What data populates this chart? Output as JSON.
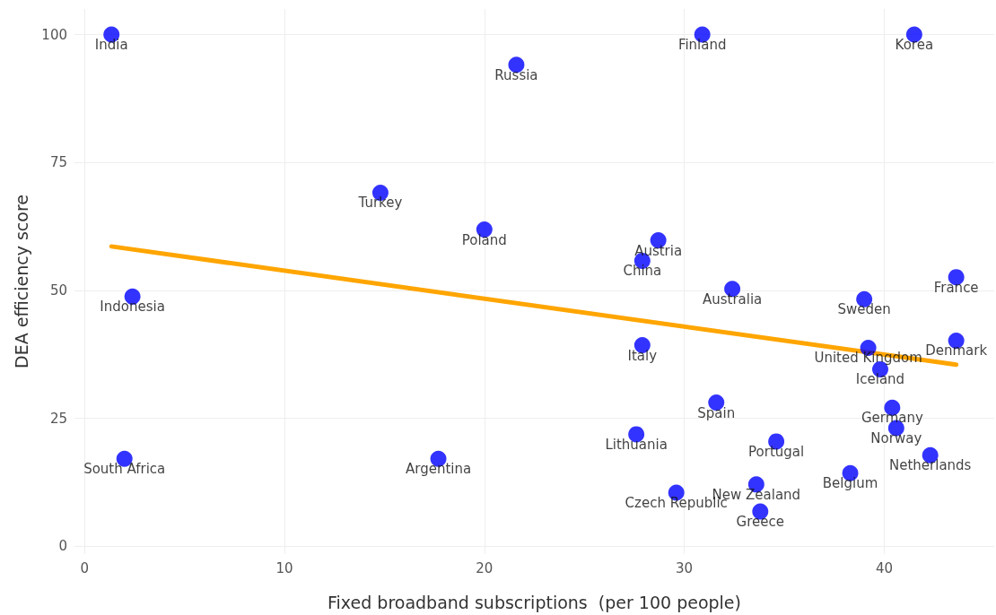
{
  "chart_data": {
    "type": "scatter",
    "xlabel": "Fixed broadband subscriptions  (per 100 people)",
    "ylabel": "DEA efficiency score",
    "xlim": [
      -0.5,
      45.5
    ],
    "xticks": [
      0,
      10,
      20,
      30,
      40
    ],
    "ylim": [
      -1.5,
      105
    ],
    "yticks": [
      0,
      25,
      50,
      75,
      100
    ],
    "grid": true,
    "series": [
      {
        "marker": "circle",
        "color": "#0000ff",
        "x": [
          1.35,
          30.9,
          41.5,
          21.6,
          14.8,
          20.0,
          28.7,
          27.9,
          43.6,
          32.4,
          2.4,
          39.0,
          43.6,
          27.9,
          39.2,
          39.8,
          31.6,
          40.4,
          40.6,
          27.6,
          34.6,
          42.3,
          2.0,
          17.7,
          38.3,
          33.6,
          29.6,
          33.8
        ],
        "values": [
          100,
          100,
          100,
          94.1,
          69.1,
          61.9,
          59.8,
          55.8,
          52.6,
          50.3,
          48.8,
          48.3,
          40.2,
          39.3,
          38.8,
          34.6,
          28.1,
          27.1,
          23.1,
          21.9,
          20.5,
          17.8,
          17.1,
          17.1,
          14.3,
          12.1,
          10.5,
          6.8
        ]
      },
      {
        "type": "line",
        "marker": "none",
        "color": "#ffa500",
        "x": [
          1.35,
          43.6
        ],
        "values": [
          58.6,
          35.5
        ]
      }
    ],
    "annotations": [
      {
        "text": "India",
        "x": 1.35,
        "y": 100
      },
      {
        "text": "Finland",
        "x": 30.9,
        "y": 100
      },
      {
        "text": "Korea",
        "x": 41.5,
        "y": 100
      },
      {
        "text": "Russia",
        "x": 21.6,
        "y": 94.1
      },
      {
        "text": "Turkey",
        "x": 14.8,
        "y": 69.1
      },
      {
        "text": "Poland",
        "x": 20.0,
        "y": 61.9
      },
      {
        "text": "Austria",
        "x": 28.7,
        "y": 59.8
      },
      {
        "text": "China",
        "x": 27.9,
        "y": 55.8
      },
      {
        "text": "France",
        "x": 43.6,
        "y": 52.6
      },
      {
        "text": "Australia",
        "x": 32.4,
        "y": 50.3
      },
      {
        "text": "Indonesia",
        "x": 2.4,
        "y": 48.8
      },
      {
        "text": "Sweden",
        "x": 39.0,
        "y": 48.3
      },
      {
        "text": "Denmark",
        "x": 43.6,
        "y": 40.2
      },
      {
        "text": "Italy",
        "x": 27.9,
        "y": 39.3
      },
      {
        "text": "United Kingdom",
        "x": 39.2,
        "y": 38.8
      },
      {
        "text": "Iceland",
        "x": 39.8,
        "y": 34.6
      },
      {
        "text": "Spain",
        "x": 31.6,
        "y": 28.1
      },
      {
        "text": "Germany",
        "x": 40.4,
        "y": 27.1
      },
      {
        "text": "Norway",
        "x": 40.6,
        "y": 23.1
      },
      {
        "text": "Lithuania",
        "x": 27.6,
        "y": 21.9
      },
      {
        "text": "Portugal",
        "x": 34.6,
        "y": 20.5
      },
      {
        "text": "Netherlands",
        "x": 42.3,
        "y": 17.8
      },
      {
        "text": "South Africa",
        "x": 2.0,
        "y": 17.1
      },
      {
        "text": "Argentina",
        "x": 17.7,
        "y": 17.1
      },
      {
        "text": "Belgium",
        "x": 38.3,
        "y": 14.3
      },
      {
        "text": "New Zealand",
        "x": 33.6,
        "y": 12.1
      },
      {
        "text": "Czech Republic",
        "x": 29.6,
        "y": 10.5
      },
      {
        "text": "Greece",
        "x": 33.8,
        "y": 6.8
      }
    ]
  }
}
